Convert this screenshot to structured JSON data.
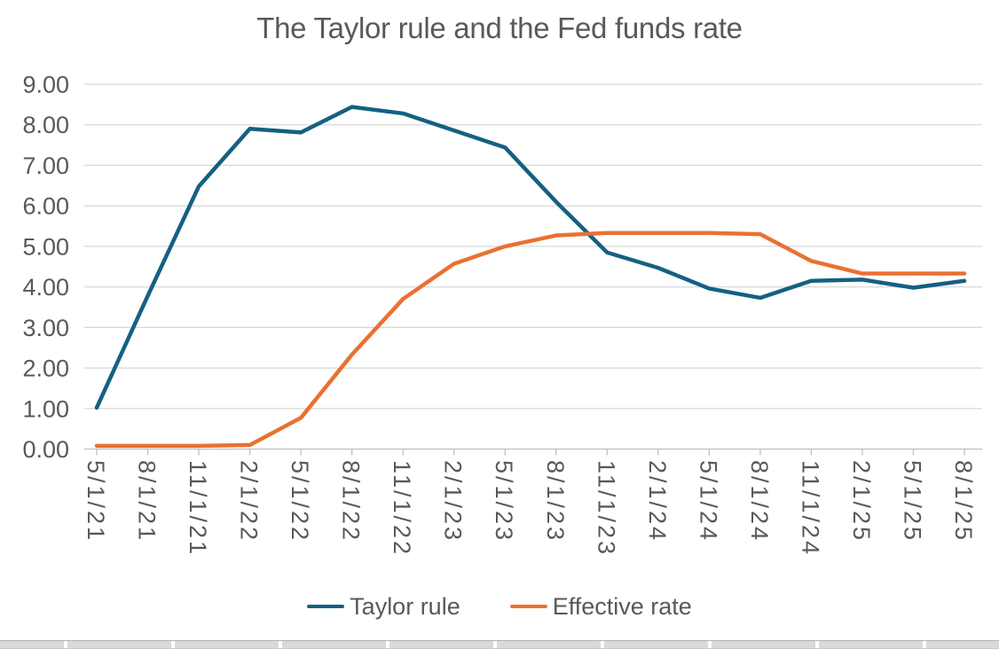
{
  "chart_data": {
    "type": "line",
    "title": "The Taylor rule and the Fed funds rate",
    "categories": [
      "5/1/21",
      "8/1/21",
      "11/1/21",
      "2/1/22",
      "5/1/22",
      "8/1/22",
      "11/1/22",
      "2/1/23",
      "5/1/23",
      "8/1/23",
      "11/1/23",
      "2/1/24",
      "5/1/24",
      "8/1/24",
      "11/1/24",
      "2/1/25",
      "5/1/25",
      "8/1/25"
    ],
    "series": [
      {
        "name": "Taylor rule",
        "color": "#156082",
        "values": [
          1.02,
          3.78,
          6.48,
          7.9,
          7.81,
          8.44,
          8.28,
          7.86,
          7.44,
          6.1,
          4.85,
          4.47,
          3.96,
          3.73,
          4.15,
          4.18,
          3.98,
          4.15
        ]
      },
      {
        "name": "Effective rate",
        "color": "#E97132",
        "values": [
          0.08,
          0.08,
          0.08,
          0.1,
          0.77,
          2.33,
          3.7,
          4.57,
          5.0,
          5.27,
          5.33,
          5.33,
          5.33,
          5.3,
          4.64,
          4.33,
          4.33,
          4.33
        ]
      }
    ],
    "ylim": [
      0,
      9
    ],
    "ytick_step": 1,
    "ytick_labels": [
      "0.00",
      "1.00",
      "2.00",
      "3.00",
      "4.00",
      "5.00",
      "6.00",
      "7.00",
      "8.00",
      "9.00"
    ],
    "xlabel": "",
    "ylabel": "",
    "grid": true,
    "legend_position": "bottom",
    "colors": {
      "text": "#595959",
      "gridline": "#D9D9D9",
      "axis_line": "#BFBFBF"
    }
  }
}
